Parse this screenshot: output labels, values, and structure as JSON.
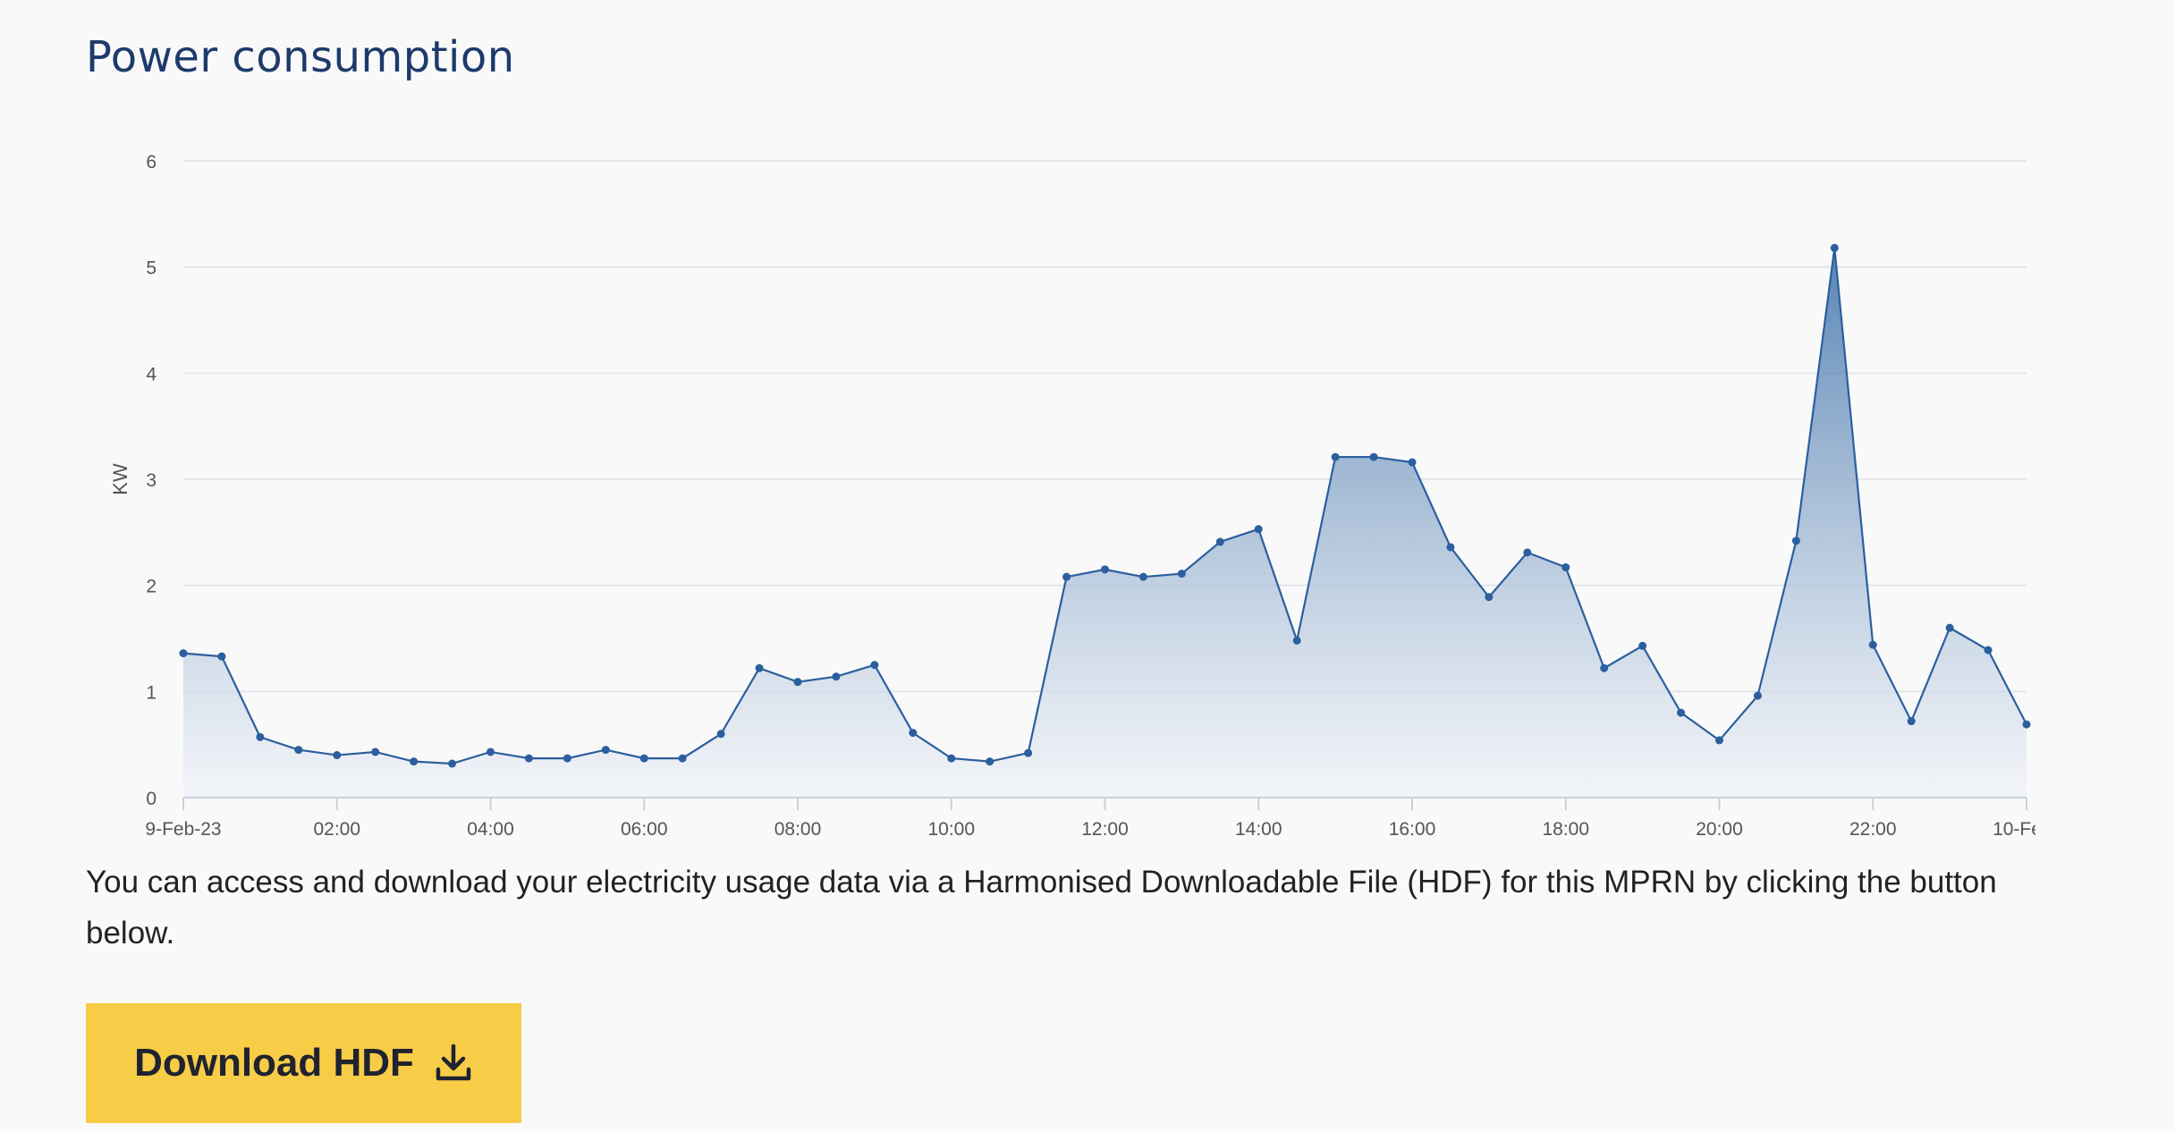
{
  "page_title": "Power consumption",
  "description": "You can access and download your electricity usage data via a Harmonised Downloadable File (HDF) for this MPRN by clicking the button below.",
  "download_button": {
    "label": "Download HDF",
    "icon": "download-icon"
  },
  "colors": {
    "line": "#2b5f9e",
    "fill_top": "#3b6fa8",
    "fill_bottom": "#eef1f7",
    "title": "#1d3a6b",
    "button": "#f7cc47"
  },
  "chart_data": {
    "type": "area",
    "title": "",
    "xlabel": "",
    "ylabel": "KW",
    "ylim": [
      0,
      6
    ],
    "y_ticks": [
      "0",
      "1",
      "2",
      "3",
      "4",
      "5",
      "6"
    ],
    "x_tick_labels": [
      "9-Feb-23",
      "02:00",
      "04:00",
      "06:00",
      "08:00",
      "10:00",
      "12:00",
      "14:00",
      "16:00",
      "18:00",
      "20:00",
      "22:00",
      "10-Fe…"
    ],
    "x_tick_hours": [
      0,
      2,
      4,
      6,
      8,
      10,
      12,
      14,
      16,
      18,
      20,
      22,
      24
    ],
    "grid": true,
    "series": [
      {
        "name": "KW",
        "interval_hours": 0.5,
        "values": [
          1.36,
          1.33,
          0.57,
          0.45,
          0.4,
          0.43,
          0.34,
          0.32,
          0.43,
          0.37,
          0.37,
          0.45,
          0.37,
          0.37,
          0.6,
          1.22,
          1.09,
          1.14,
          1.25,
          0.61,
          0.37,
          0.34,
          0.42,
          2.08,
          2.15,
          2.08,
          2.11,
          2.41,
          2.53,
          1.48,
          3.21,
          3.21,
          3.16,
          2.36,
          1.89,
          2.31,
          2.17,
          1.22,
          1.43,
          0.8,
          0.54,
          0.96,
          2.42,
          5.18,
          1.44,
          0.72,
          1.6,
          1.39,
          0.69
        ]
      }
    ]
  }
}
